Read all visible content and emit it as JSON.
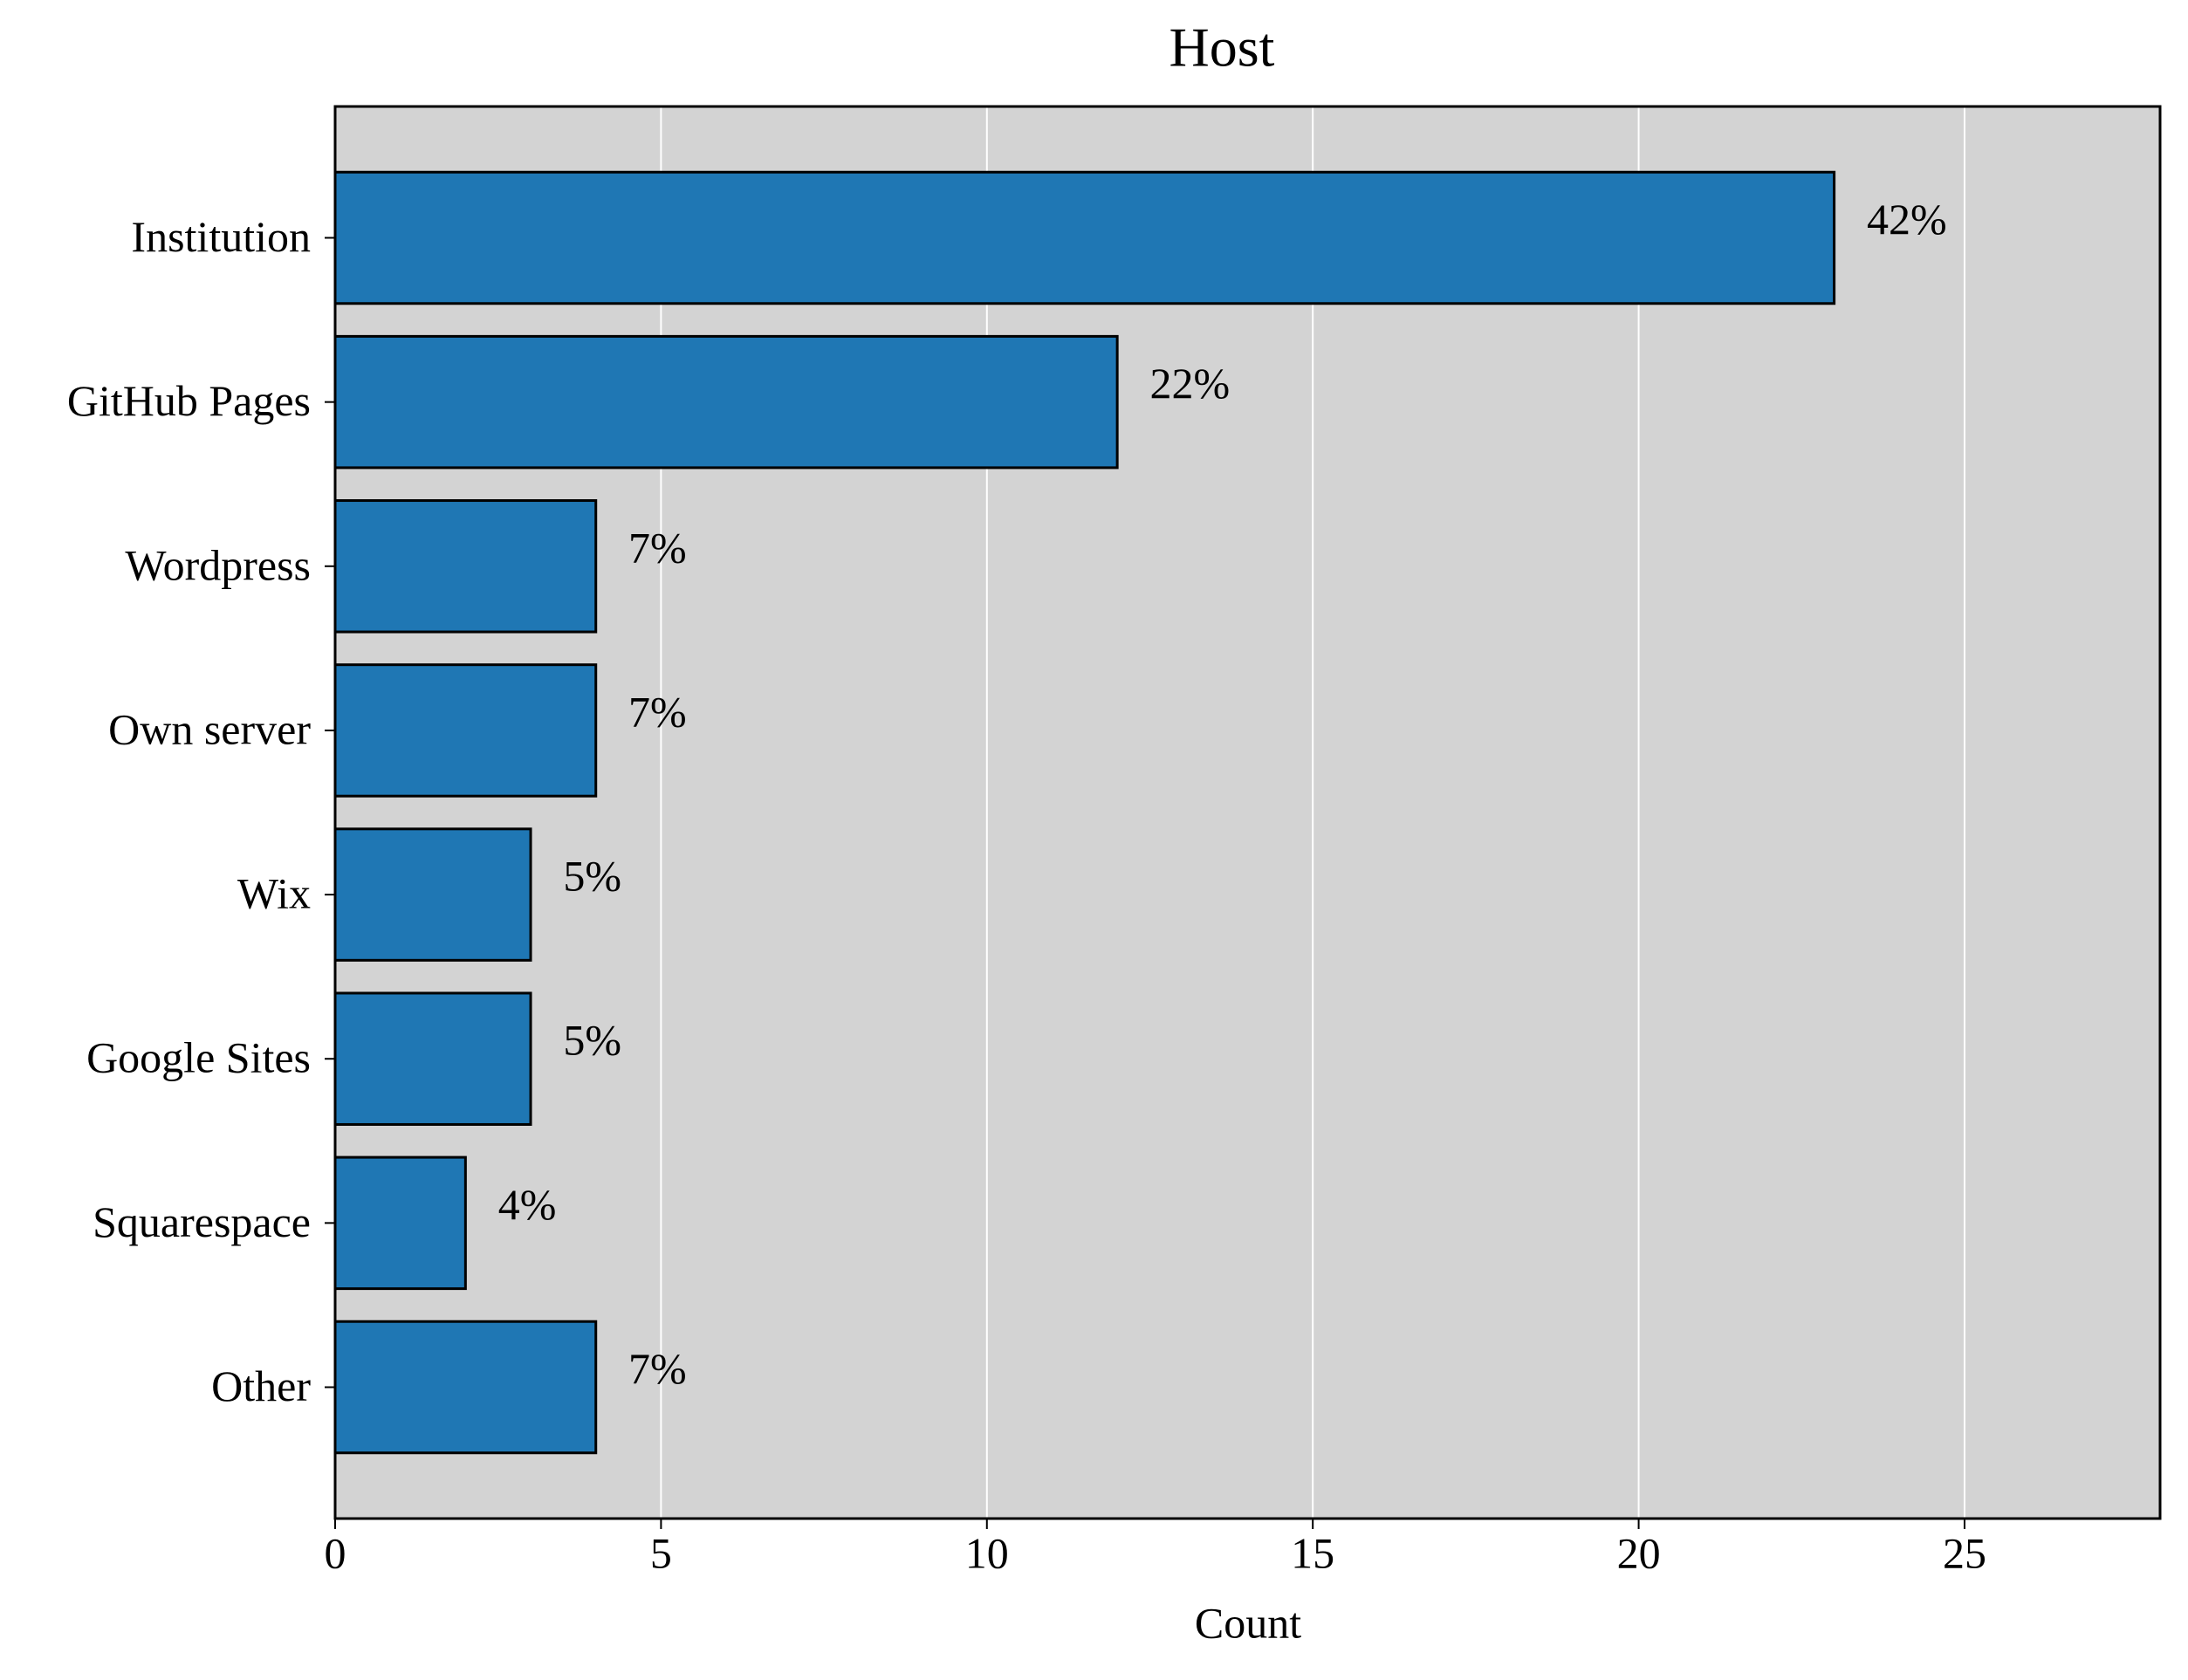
{
  "chart_data": {
    "type": "barh",
    "title": "Host",
    "xlabel": "Count",
    "categories": [
      "Institution",
      "GitHub Pages",
      "Wordpress",
      "Own server",
      "Wix",
      "Google Sites",
      "Squarespace",
      "Other"
    ],
    "values": [
      23,
      12,
      4,
      4,
      3,
      3,
      2,
      4
    ],
    "annotations": [
      "42%",
      "22%",
      "7%",
      "7%",
      "5%",
      "5%",
      "4%",
      "7%"
    ],
    "color": "#1f77b4",
    "edgecolor": "#000000",
    "background": "#d3d3d3",
    "xlim": [
      0,
      28
    ],
    "xticks": [
      0,
      5,
      10,
      15,
      20,
      25
    ],
    "grid": true
  }
}
